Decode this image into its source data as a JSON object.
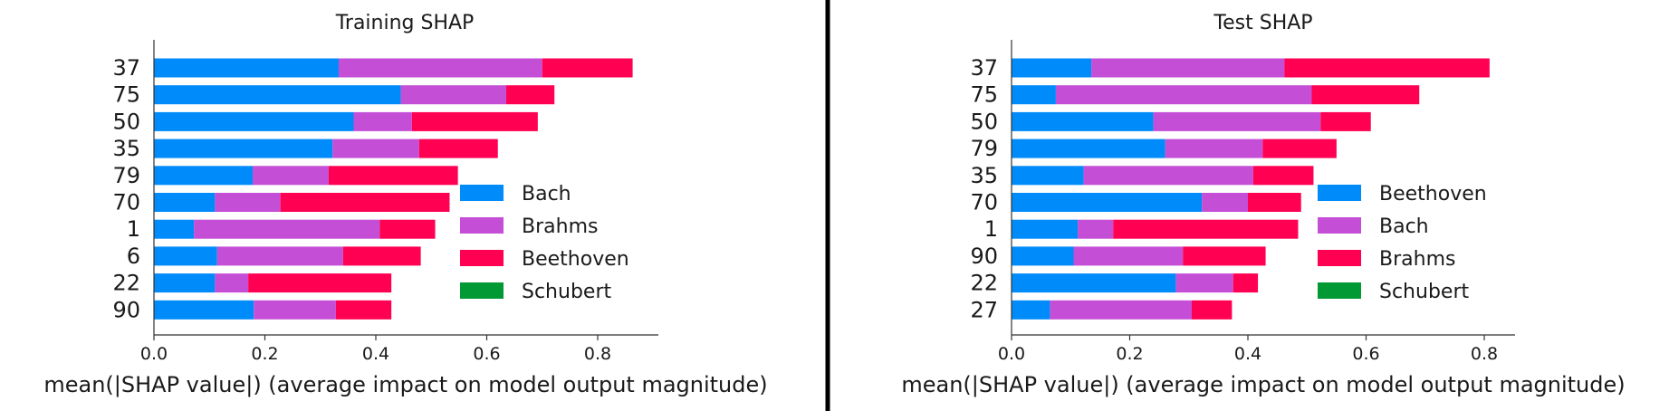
{
  "chart_data": [
    {
      "type": "bar",
      "stacked": true,
      "orientation": "horizontal",
      "title": "Training SHAP",
      "xlabel": "mean(|SHAP value|) (average impact on model output magnitude)",
      "ylabel": "",
      "xlim": [
        0,
        0.9
      ],
      "xticks": [
        "0.0",
        "0.2",
        "0.4",
        "0.6",
        "0.8"
      ],
      "categories": [
        "37",
        "75",
        "50",
        "35",
        "79",
        "70",
        "1",
        "6",
        "22",
        "90"
      ],
      "series": [
        {
          "name": "Bach",
          "color": "#008bfb",
          "values": [
            0.333,
            0.445,
            0.36,
            0.322,
            0.178,
            0.11,
            0.072,
            0.114,
            0.11,
            0.18
          ]
        },
        {
          "name": "Brahms",
          "color": "#c44fd6",
          "values": [
            0.367,
            0.19,
            0.105,
            0.156,
            0.137,
            0.118,
            0.335,
            0.227,
            0.06,
            0.148
          ]
        },
        {
          "name": "Beethoven",
          "color": "#ff0052",
          "values": [
            0.163,
            0.087,
            0.227,
            0.142,
            0.233,
            0.305,
            0.1,
            0.14,
            0.258,
            0.1
          ]
        },
        {
          "name": "Schubert",
          "color": "#009933",
          "values": [
            0,
            0,
            0,
            0,
            0,
            0,
            0,
            0,
            0,
            0
          ]
        }
      ],
      "legend": "lower-right"
    },
    {
      "type": "bar",
      "stacked": true,
      "orientation": "horizontal",
      "title": "Test SHAP",
      "xlabel": "mean(|SHAP value|) (average impact on model output magnitude)",
      "ylabel": "",
      "xlim": [
        0,
        0.85
      ],
      "xticks": [
        "0.0",
        "0.2",
        "0.4",
        "0.6",
        "0.8"
      ],
      "categories": [
        "37",
        "75",
        "50",
        "79",
        "35",
        "70",
        "1",
        "90",
        "22",
        "27"
      ],
      "series": [
        {
          "name": "Beethoven",
          "color": "#008bfb",
          "values": [
            0.135,
            0.075,
            0.24,
            0.26,
            0.122,
            0.322,
            0.112,
            0.105,
            0.278,
            0.065
          ]
        },
        {
          "name": "Bach",
          "color": "#c44fd6",
          "values": [
            0.327,
            0.433,
            0.283,
            0.165,
            0.287,
            0.078,
            0.06,
            0.185,
            0.097,
            0.24
          ]
        },
        {
          "name": "Brahms",
          "color": "#ff0052",
          "values": [
            0.347,
            0.182,
            0.085,
            0.125,
            0.102,
            0.09,
            0.313,
            0.14,
            0.042,
            0.068
          ]
        },
        {
          "name": "Schubert",
          "color": "#009933",
          "values": [
            0,
            0,
            0,
            0,
            0,
            0,
            0,
            0,
            0,
            0
          ]
        }
      ],
      "legend": "lower-right"
    }
  ]
}
